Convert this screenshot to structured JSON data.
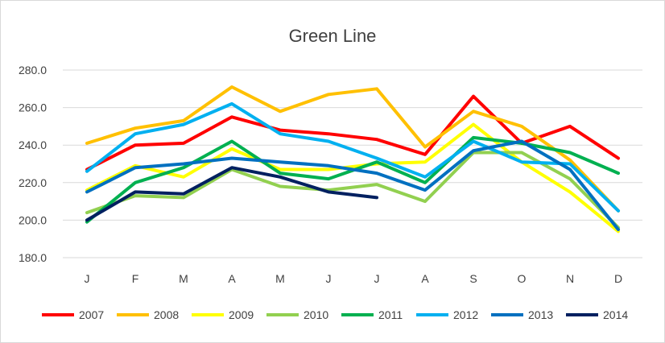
{
  "chart_data": {
    "type": "line",
    "title": "Green Line",
    "xlabel": "",
    "ylabel": "",
    "categories": [
      "J",
      "F",
      "M",
      "A",
      "M",
      "J",
      "J",
      "A",
      "S",
      "O",
      "N",
      "D"
    ],
    "y_ticks": [
      "180.0",
      "200.0",
      "220.0",
      "240.0",
      "260.0",
      "280.0"
    ],
    "ylim": [
      180,
      280
    ],
    "grid": true,
    "legend_position": "bottom",
    "series": [
      {
        "name": "2007",
        "color": "#ff0000",
        "values": [
          227,
          240,
          241,
          255,
          248,
          246,
          243,
          235,
          266,
          241,
          250,
          233
        ]
      },
      {
        "name": "2008",
        "color": "#ffc000",
        "values": [
          241,
          249,
          253,
          271,
          258,
          267,
          270,
          239,
          258,
          250,
          232,
          205
        ]
      },
      {
        "name": "2009",
        "color": "#ffff00",
        "values": [
          216,
          229,
          223,
          238,
          227,
          227,
          230,
          231,
          251,
          231,
          215,
          194
        ]
      },
      {
        "name": "2010",
        "color": "#92d050",
        "values": [
          204,
          213,
          212,
          227,
          218,
          216,
          219,
          210,
          236,
          236,
          222,
          196
        ]
      },
      {
        "name": "2011",
        "color": "#00b050",
        "values": [
          199,
          220,
          228,
          242,
          225,
          222,
          231,
          220,
          244,
          241,
          236,
          225
        ]
      },
      {
        "name": "2012",
        "color": "#00b0f0",
        "values": [
          226,
          246,
          251,
          262,
          246,
          242,
          233,
          223,
          242,
          231,
          230,
          205
        ]
      },
      {
        "name": "2013",
        "color": "#0070c0",
        "values": [
          215,
          228,
          230,
          233,
          231,
          229,
          225,
          216,
          237,
          242,
          227,
          195
        ]
      },
      {
        "name": "2014",
        "color": "#002060",
        "values": [
          200,
          215,
          214,
          228,
          223,
          215,
          212,
          null,
          null,
          null,
          null,
          null
        ]
      }
    ]
  }
}
